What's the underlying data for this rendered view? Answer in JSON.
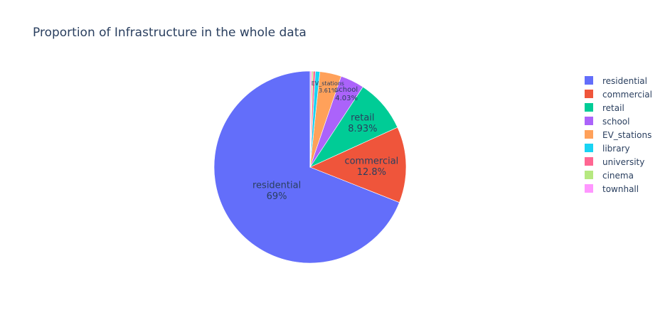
{
  "chart_data": {
    "type": "pie",
    "title": "Proportion of Infrastructure in the whole data",
    "direction": "counterclockwise",
    "start": "top",
    "slices": [
      {
        "label": "residential",
        "value": 69.0,
        "text": "69%",
        "color": "#636efa",
        "show_text": true
      },
      {
        "label": "commercial",
        "value": 12.8,
        "text": "12.8%",
        "color": "#ef553b",
        "show_text": true
      },
      {
        "label": "retail",
        "value": 8.93,
        "text": "8.93%",
        "color": "#00cc96",
        "show_text": true
      },
      {
        "label": "school",
        "value": 4.03,
        "text": "4.03%",
        "color": "#ab63fa",
        "show_text": true
      },
      {
        "label": "EV_stations",
        "value": 3.61,
        "text": "3.61%",
        "color": "#ffa15a",
        "show_text": true
      },
      {
        "label": "library",
        "value": 0.75,
        "text": "",
        "color": "#19d3f3",
        "show_text": false
      },
      {
        "label": "university",
        "value": 0.38,
        "text": "",
        "color": "#ff6692",
        "show_text": false
      },
      {
        "label": "cinema",
        "value": 0.25,
        "text": "",
        "color": "#b6e880",
        "show_text": false
      },
      {
        "label": "townhall",
        "value": 0.25,
        "text": "",
        "color": "#ff97ff",
        "show_text": false
      }
    ],
    "legend": {
      "placement": "top-right"
    }
  }
}
